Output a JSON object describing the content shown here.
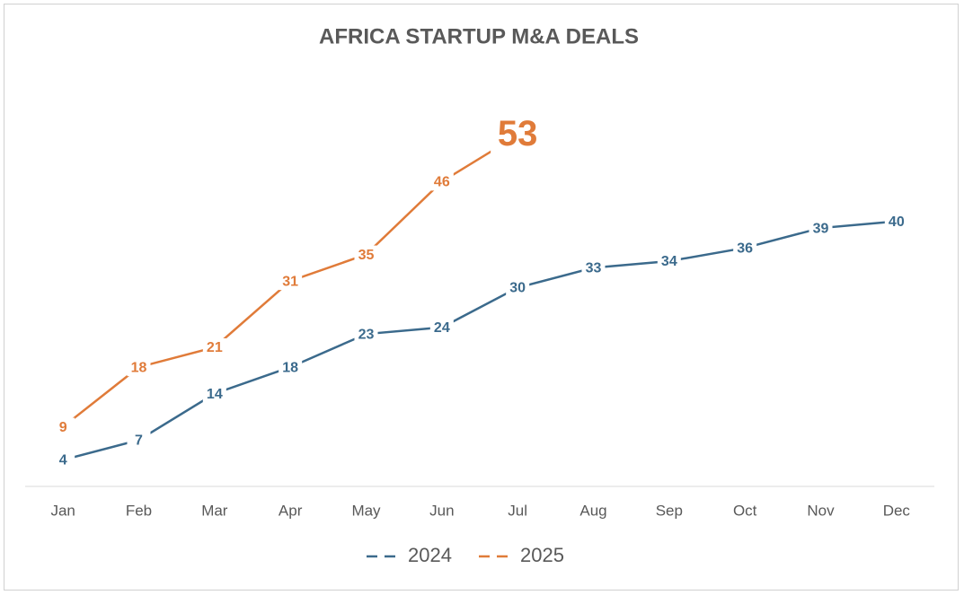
{
  "chart_data": {
    "type": "line",
    "title": "AFRICA STARTUP M&A DEALS",
    "categories": [
      "Jan",
      "Feb",
      "Mar",
      "Apr",
      "May",
      "Jun",
      "Jul",
      "Aug",
      "Sep",
      "Oct",
      "Nov",
      "Dec"
    ],
    "series": [
      {
        "name": "2024",
        "color": "#3b6a8c",
        "values": [
          4,
          7,
          14,
          18,
          23,
          24,
          30,
          33,
          34,
          36,
          39,
          40
        ]
      },
      {
        "name": "2025",
        "color": "#e07b39",
        "values": [
          9,
          18,
          21,
          31,
          35,
          46,
          53,
          null,
          null,
          null,
          null,
          null
        ]
      }
    ],
    "ylim": [
      0,
      60
    ],
    "legend": "bottom"
  }
}
